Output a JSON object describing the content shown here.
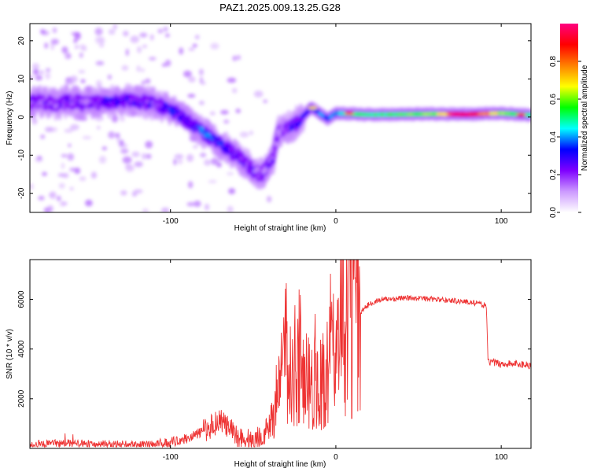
{
  "title": "PAZ1.2025.009.13.25.G28",
  "chart_data": [
    {
      "type": "heatmap",
      "xlabel": "Height of straight line (km)",
      "ylabel": "Frequency (Hz)",
      "xlim": [
        -185,
        118
      ],
      "ylim": [
        -25,
        24.5
      ],
      "xticks": [
        -100,
        0,
        100
      ],
      "yticks": [
        -20,
        -10,
        0,
        10,
        20
      ],
      "colorbar": {
        "label": "Normalized spectral amplitude",
        "range": [
          0,
          1
        ],
        "ticks": [
          "0.0",
          "0.2",
          "0.4",
          "0.6",
          "0.8"
        ],
        "colors": [
          "#ffffff",
          "#cc99ff",
          "#7f00ff",
          "#0000ff",
          "#00ffff",
          "#00ff00",
          "#ffff00",
          "#ff8000",
          "#ff0000",
          "#ff0080"
        ]
      },
      "ridge": {
        "x": [
          -180,
          -170,
          -160,
          -150,
          -140,
          -130,
          -120,
          -110,
          -100,
          -90,
          -80,
          -70,
          -60,
          -55,
          -50,
          -45,
          -40,
          -38,
          -35,
          -30,
          -25,
          -20,
          -15,
          -10,
          -5,
          0,
          10,
          20,
          40,
          60,
          80,
          100,
          118
        ],
        "y": [
          4,
          3.5,
          4,
          3.5,
          4,
          4.5,
          4,
          3.5,
          2,
          -1,
          -4,
          -7,
          -10,
          -12,
          -14,
          -15,
          -12,
          -11,
          -4,
          -3,
          -2,
          0,
          2.5,
          1,
          -0.5,
          1,
          0.8,
          0.6,
          0.7,
          0.8,
          0.7,
          1,
          0.5
        ],
        "amplitude": [
          0.2,
          0.2,
          0.2,
          0.2,
          0.25,
          0.25,
          0.25,
          0.2,
          0.3,
          0.25,
          0.35,
          0.3,
          0.25,
          0.2,
          0.2,
          0.15,
          0.2,
          0.2,
          0.15,
          0.2,
          0.25,
          0.3,
          0.3,
          0.35,
          0.35,
          0.4,
          0.55,
          0.5,
          0.55,
          0.6,
          0.95,
          0.6,
          0.5
        ]
      }
    },
    {
      "type": "line",
      "xlabel": "Height of straight line (km)",
      "ylabel": "SNR (10 * v/v)",
      "xlim": [
        -185,
        118
      ],
      "ylim": [
        0,
        7600
      ],
      "xticks": [
        -100,
        0,
        100
      ],
      "yticks": [
        2000,
        4000,
        6000
      ],
      "color": "#ee3333",
      "x": [
        -185,
        -170,
        -150,
        -130,
        -110,
        -100,
        -90,
        -80,
        -75,
        -70,
        -65,
        -60,
        -55,
        -50,
        -45,
        -40,
        -38,
        -35,
        -33,
        -30,
        -28,
        -25,
        -22,
        -20,
        -18,
        -15,
        -12,
        -10,
        -8,
        -5,
        -3,
        0,
        3,
        5,
        7,
        9,
        10,
        12,
        15,
        20,
        25,
        30,
        40,
        50,
        60,
        70,
        80,
        88,
        91,
        92,
        95,
        100,
        105,
        110,
        118
      ],
      "y": [
        150,
        200,
        180,
        150,
        150,
        250,
        400,
        700,
        900,
        1200,
        800,
        500,
        350,
        300,
        500,
        900,
        1300,
        2000,
        2800,
        3500,
        2500,
        3000,
        3400,
        2800,
        3200,
        2600,
        2900,
        2500,
        2700,
        3500,
        4500,
        3800,
        4700,
        5000,
        4000,
        5000,
        4600,
        5200,
        5500,
        5800,
        5950,
        6000,
        6050,
        6050,
        6000,
        5950,
        5900,
        5800,
        5750,
        3500,
        3450,
        3400,
        3400,
        3400,
        3350
      ]
    }
  ]
}
